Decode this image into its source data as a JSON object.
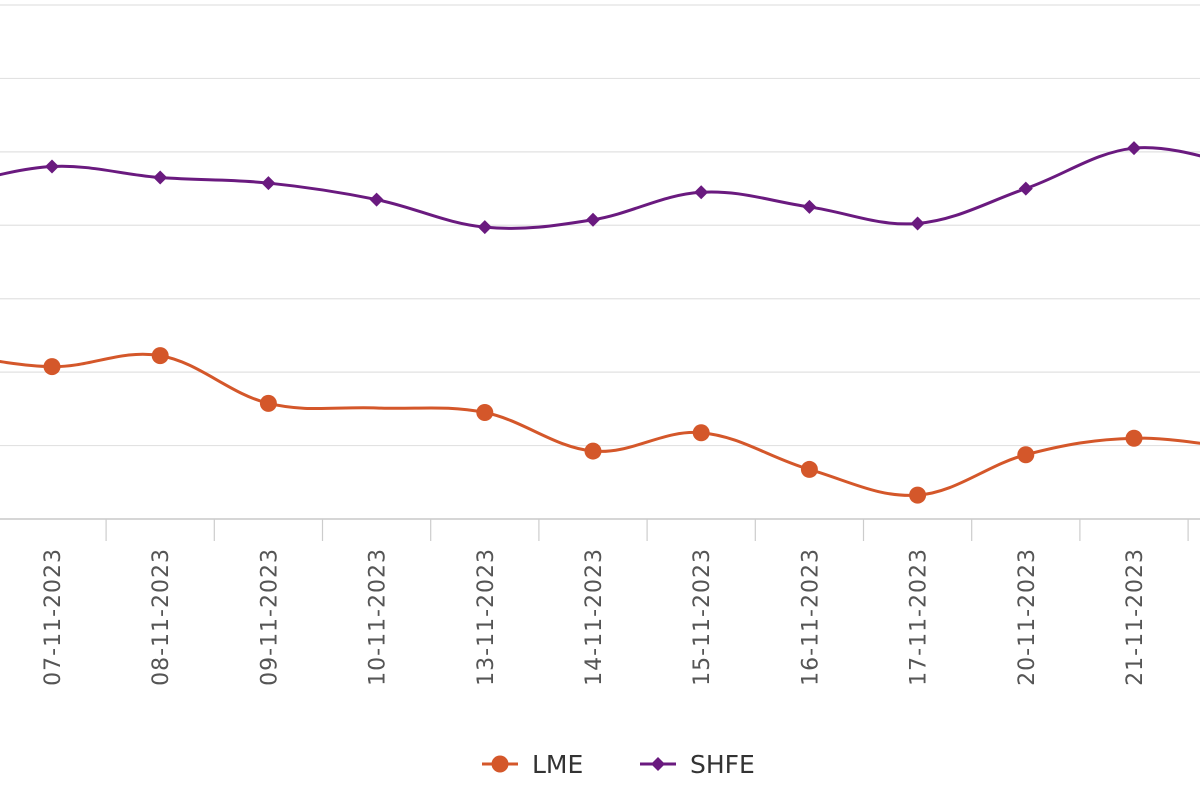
{
  "chart_data": {
    "type": "line",
    "x": [
      "07-11-2023",
      "08-11-2023",
      "09-11-2023",
      "10-11-2023",
      "13-11-2023",
      "14-11-2023",
      "15-11-2023",
      "16-11-2023",
      "17-11-2023",
      "20-11-2023",
      "21-11-2023"
    ],
    "series": [
      {
        "name": "LME",
        "color": "#d4572a",
        "marker": "circle",
        "values": [
          4.15,
          4.45,
          3.15,
          null,
          2.9,
          1.85,
          2.35,
          1.35,
          0.65,
          1.75,
          2.2
        ],
        "edge_left": 4.55,
        "edge_right": 1.9
      },
      {
        "name": "SHFE",
        "color": "#6a1a7f",
        "marker": "diamond",
        "values": [
          9.6,
          9.3,
          9.15,
          8.7,
          7.95,
          8.15,
          8.9,
          8.5,
          8.05,
          9.0,
          10.1
        ],
        "edge_left": 9.0,
        "edge_right": 9.6
      }
    ],
    "gridlines": [
      0,
      4,
      8,
      12
    ],
    "ylim": [
      0,
      14
    ],
    "grid": true,
    "legend": "bottom-center"
  }
}
